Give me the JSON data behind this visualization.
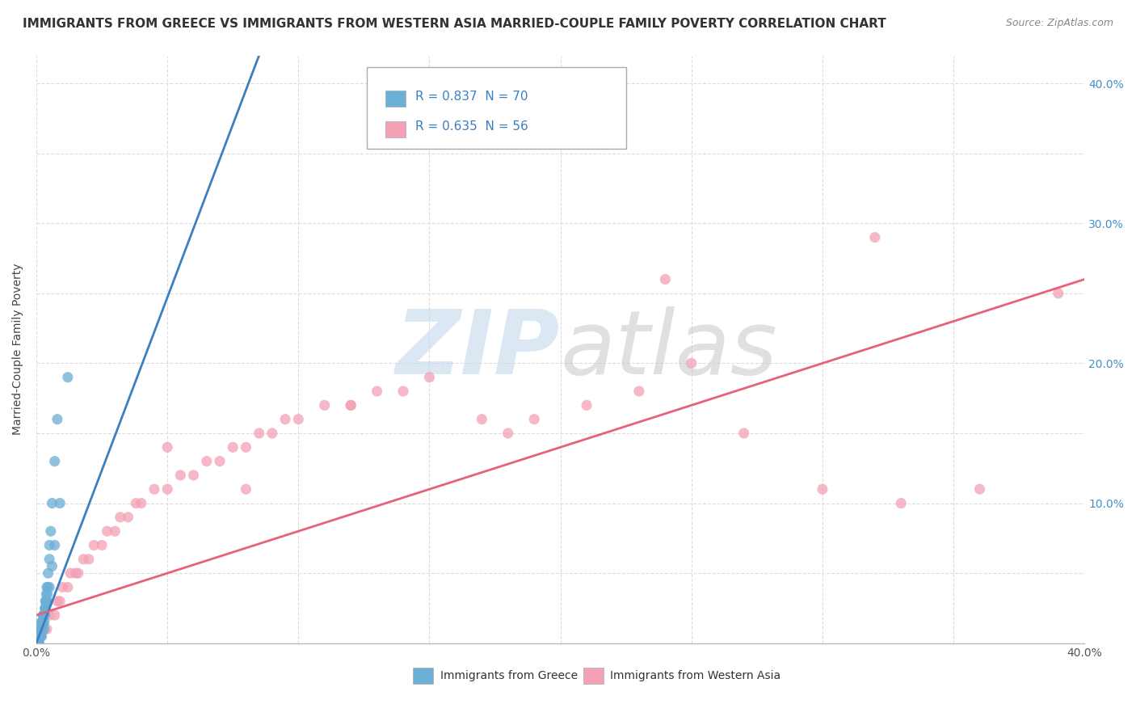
{
  "title": "IMMIGRANTS FROM GREECE VS IMMIGRANTS FROM WESTERN ASIA MARRIED-COUPLE FAMILY POVERTY CORRELATION CHART",
  "source": "Source: ZipAtlas.com",
  "ylabel": "Married-Couple Family Poverty",
  "xlim": [
    0.0,
    0.4
  ],
  "ylim": [
    0.0,
    0.42
  ],
  "xticks": [
    0.0,
    0.05,
    0.1,
    0.15,
    0.2,
    0.25,
    0.3,
    0.35,
    0.4
  ],
  "yticks": [
    0.0,
    0.05,
    0.1,
    0.15,
    0.2,
    0.25,
    0.3,
    0.35,
    0.4
  ],
  "right_ytick_labels": [
    "",
    "10.0%",
    "20.0%",
    "30.0%",
    "40.0%"
  ],
  "right_yticks": [
    0.0,
    0.1,
    0.2,
    0.3,
    0.4
  ],
  "greece_color": "#6baed6",
  "western_asia_color": "#f4a0b5",
  "greece_line_color": "#3a80c0",
  "western_asia_line_color": "#e8607a",
  "R_greece": 0.837,
  "N_greece": 70,
  "R_western_asia": 0.635,
  "N_western_asia": 56,
  "legend_labels": [
    "Immigrants from Greece",
    "Immigrants from Western Asia"
  ],
  "watermark_zip_color": "#c5d8ee",
  "watermark_atlas_color": "#cccccc",
  "background_color": "#ffffff",
  "grid_color": "#dddddd",
  "title_fontsize": 11,
  "greece_scatter_x": [
    0.0002,
    0.0003,
    0.0004,
    0.0005,
    0.0006,
    0.0006,
    0.0007,
    0.0008,
    0.0009,
    0.001,
    0.001,
    0.0012,
    0.0013,
    0.0014,
    0.0015,
    0.0015,
    0.0016,
    0.0017,
    0.0018,
    0.0019,
    0.002,
    0.002,
    0.0021,
    0.0022,
    0.0023,
    0.0024,
    0.0025,
    0.0026,
    0.0027,
    0.0028,
    0.003,
    0.003,
    0.0032,
    0.0033,
    0.0034,
    0.0035,
    0.0036,
    0.0037,
    0.0038,
    0.004,
    0.004,
    0.0042,
    0.0043,
    0.0045,
    0.005,
    0.005,
    0.0055,
    0.006,
    0.007,
    0.008,
    0.0001,
    0.0002,
    0.0003,
    0.0004,
    0.0005,
    0.0007,
    0.0009,
    0.0011,
    0.0014,
    0.0017,
    0.002,
    0.0025,
    0.003,
    0.0035,
    0.004,
    0.005,
    0.006,
    0.007,
    0.009,
    0.012
  ],
  "greece_scatter_y": [
    0.0,
    0.0,
    0.0,
    0.0,
    0.0,
    0.005,
    0.0,
    0.005,
    0.005,
    0.0,
    0.005,
    0.005,
    0.005,
    0.01,
    0.005,
    0.01,
    0.005,
    0.01,
    0.01,
    0.015,
    0.005,
    0.01,
    0.01,
    0.015,
    0.015,
    0.015,
    0.015,
    0.02,
    0.02,
    0.02,
    0.01,
    0.015,
    0.02,
    0.025,
    0.025,
    0.03,
    0.03,
    0.03,
    0.035,
    0.04,
    0.03,
    0.035,
    0.04,
    0.05,
    0.06,
    0.07,
    0.08,
    0.1,
    0.13,
    0.16,
    0.0,
    0.0,
    0.0,
    0.0,
    0.0,
    0.0,
    0.0,
    0.005,
    0.005,
    0.01,
    0.01,
    0.015,
    0.02,
    0.025,
    0.03,
    0.04,
    0.055,
    0.07,
    0.1,
    0.19
  ],
  "western_asia_scatter_x": [
    0.001,
    0.002,
    0.003,
    0.004,
    0.005,
    0.007,
    0.008,
    0.009,
    0.01,
    0.012,
    0.013,
    0.015,
    0.016,
    0.018,
    0.02,
    0.022,
    0.025,
    0.027,
    0.03,
    0.032,
    0.035,
    0.038,
    0.04,
    0.045,
    0.05,
    0.055,
    0.06,
    0.065,
    0.07,
    0.075,
    0.08,
    0.085,
    0.09,
    0.095,
    0.1,
    0.11,
    0.12,
    0.13,
    0.14,
    0.15,
    0.17,
    0.19,
    0.21,
    0.23,
    0.25,
    0.27,
    0.3,
    0.33,
    0.36,
    0.39,
    0.05,
    0.08,
    0.12,
    0.18,
    0.24,
    0.32
  ],
  "western_asia_scatter_y": [
    0.0,
    0.005,
    0.01,
    0.01,
    0.02,
    0.02,
    0.03,
    0.03,
    0.04,
    0.04,
    0.05,
    0.05,
    0.05,
    0.06,
    0.06,
    0.07,
    0.07,
    0.08,
    0.08,
    0.09,
    0.09,
    0.1,
    0.1,
    0.11,
    0.11,
    0.12,
    0.12,
    0.13,
    0.13,
    0.14,
    0.14,
    0.15,
    0.15,
    0.16,
    0.16,
    0.17,
    0.17,
    0.18,
    0.18,
    0.19,
    0.16,
    0.16,
    0.17,
    0.18,
    0.2,
    0.15,
    0.11,
    0.1,
    0.11,
    0.25,
    0.14,
    0.11,
    0.17,
    0.15,
    0.26,
    0.29
  ],
  "greece_regline_x": [
    0.0,
    0.085
  ],
  "greece_regline_y": [
    0.0,
    0.42
  ],
  "western_asia_regline_x": [
    0.0,
    0.4
  ],
  "western_asia_regline_y": [
    0.02,
    0.26
  ]
}
